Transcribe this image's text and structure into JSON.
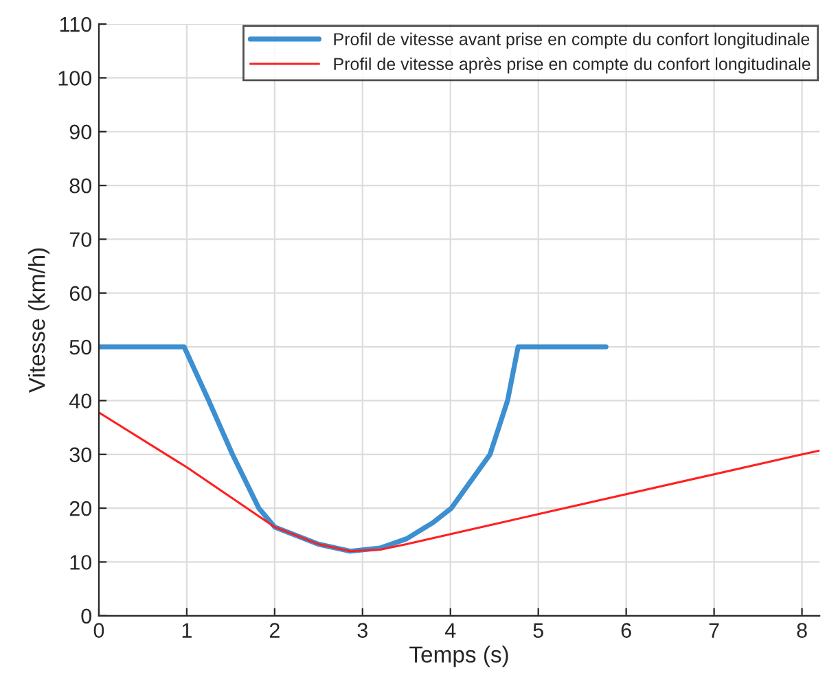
{
  "chart_data": {
    "type": "line",
    "xlabel": "Temps (s)",
    "ylabel": "Vitesse (km/h)",
    "xlim": [
      0,
      8.2
    ],
    "xticks": [
      0,
      1,
      2,
      3,
      4,
      5,
      6,
      7,
      8
    ],
    "ylim": [
      0,
      110
    ],
    "yticks": [
      0,
      10,
      20,
      30,
      40,
      50,
      60,
      70,
      80,
      90,
      100,
      110
    ],
    "grid": true,
    "legend": "top right",
    "line_style": "solid",
    "marker": "none",
    "series": [
      {
        "name": "Profil de vitesse avant prise en compte du confort longitudinale",
        "color": "#3c8fd0",
        "x": [
          0,
          0.97,
          1.25,
          1.52,
          1.82,
          2,
          2.5,
          2.86,
          3.2,
          3.5,
          3.8,
          4.01,
          4.45,
          4.65,
          4.77,
          5.77
        ],
        "values": [
          50,
          50,
          40,
          30,
          20,
          16.5,
          13.3,
          12,
          12.6,
          14.3,
          17.3,
          20,
          30,
          40,
          50,
          50
        ]
      },
      {
        "name": "Profil de vitesse après prise en compte du confort longitudinale",
        "color": "#ff2020",
        "x": [
          0,
          1,
          2,
          2.5,
          2.86,
          3.2,
          3.5,
          5,
          8,
          8.2
        ],
        "values": [
          37.8,
          27.6,
          16.5,
          13.3,
          12,
          12.3,
          13.3,
          18.9,
          30,
          30.7
        ]
      }
    ]
  }
}
